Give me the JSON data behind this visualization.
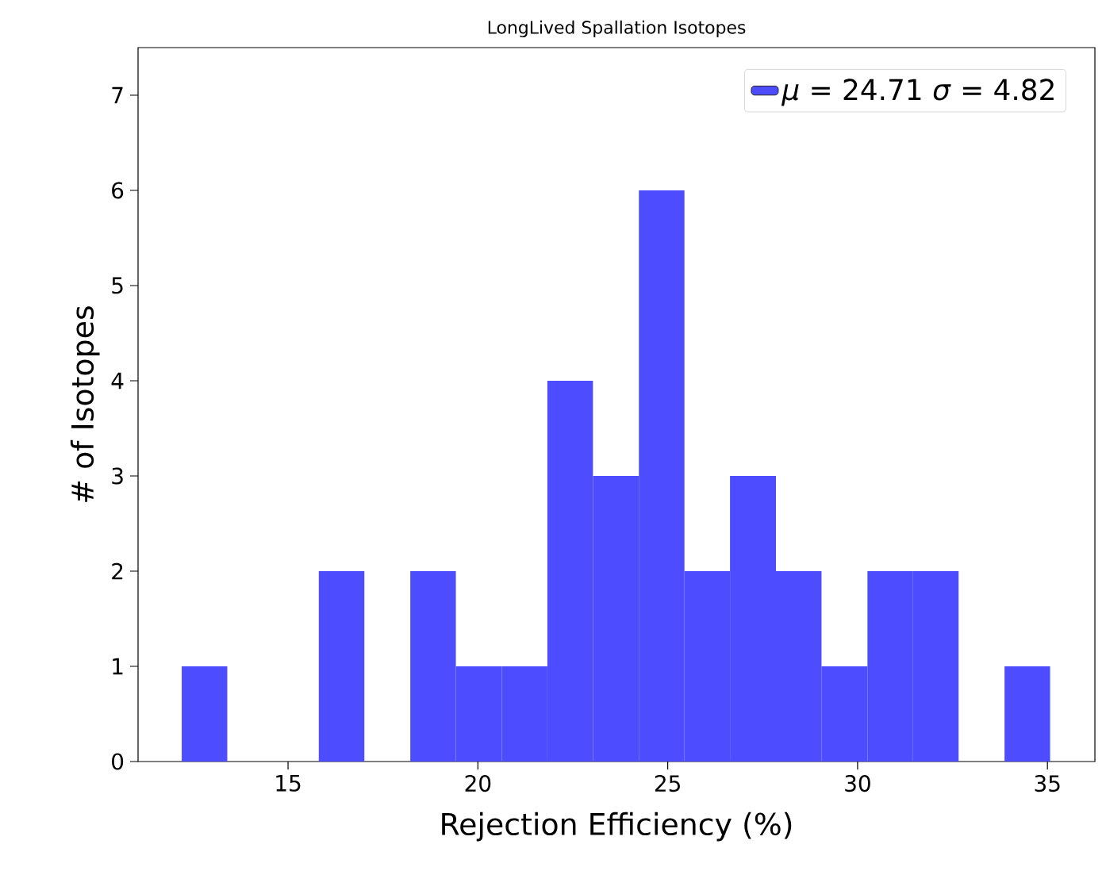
{
  "chart_data": {
    "type": "histogram",
    "title": "LongLived Spallation Isotopes",
    "xlabel": "Rejection Efficiency (%)",
    "ylabel": "# of Isotopes",
    "bins": [
      12.2,
      13.4,
      14.61,
      15.81,
      17.01,
      18.22,
      19.42,
      20.63,
      21.83,
      23.03,
      24.24,
      25.44,
      26.64,
      27.85,
      29.05,
      30.26,
      31.46,
      32.66,
      33.87,
      35.07
    ],
    "series": [
      {
        "name": "*μ* = 24.71 *σ* = 4.82",
        "color": "#4d4dff",
        "values": [
          1,
          0,
          0,
          2,
          0,
          2,
          1,
          1,
          4,
          3,
          6,
          2,
          3,
          2,
          1,
          2,
          2,
          0,
          1
        ]
      }
    ],
    "xlim": [
      11.05,
      36.25
    ],
    "ylim": [
      0,
      7.5
    ],
    "xticks": [
      15,
      20,
      25,
      30,
      35
    ],
    "yticks": [
      0,
      1,
      2,
      3,
      4,
      5,
      6,
      7
    ],
    "legend": "top right",
    "grid": false
  }
}
